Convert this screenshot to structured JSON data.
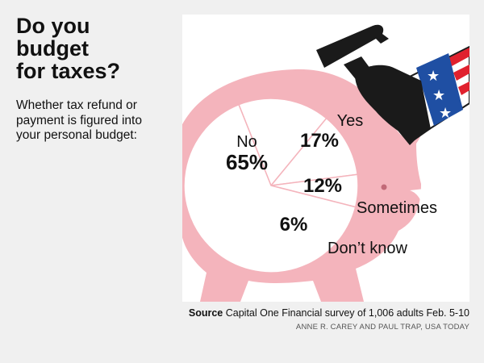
{
  "title_lines": [
    "Do you",
    "budget",
    "for taxes?"
  ],
  "subtitle_lines": [
    "Whether tax refund or",
    "payment is figured into",
    "your personal budget:"
  ],
  "source": {
    "label": "Source",
    "text": " Capital One Financial survey of 1,006 adults Feb. 5-10"
  },
  "credit": "ANNE R. CAREY AND PAUL TRAP, USA TODAY",
  "colors": {
    "pig": "#f4b4bc",
    "pie_fill": "#ffffff",
    "slice_lines": "#f4b4bc",
    "hammer": "#1a1a1a",
    "sleeve_red": "#e0212e",
    "sleeve_blue": "#1f4fa3"
  },
  "icons": [
    "piggy-bank-icon",
    "hammer-icon",
    "flag-sleeve-icon"
  ],
  "chart_data": {
    "type": "pie",
    "title": "Do you budget for taxes?",
    "subtitle": "Whether tax refund or payment is figured into your personal budget:",
    "slices": [
      {
        "label": "No",
        "value": 65,
        "value_label": "65%"
      },
      {
        "label": "Yes",
        "value": 17,
        "value_label": "17%"
      },
      {
        "label": "Sometimes",
        "value": 12,
        "value_label": "12%"
      },
      {
        "label": "Don’t know",
        "value": 6,
        "value_label": "6%"
      }
    ]
  }
}
